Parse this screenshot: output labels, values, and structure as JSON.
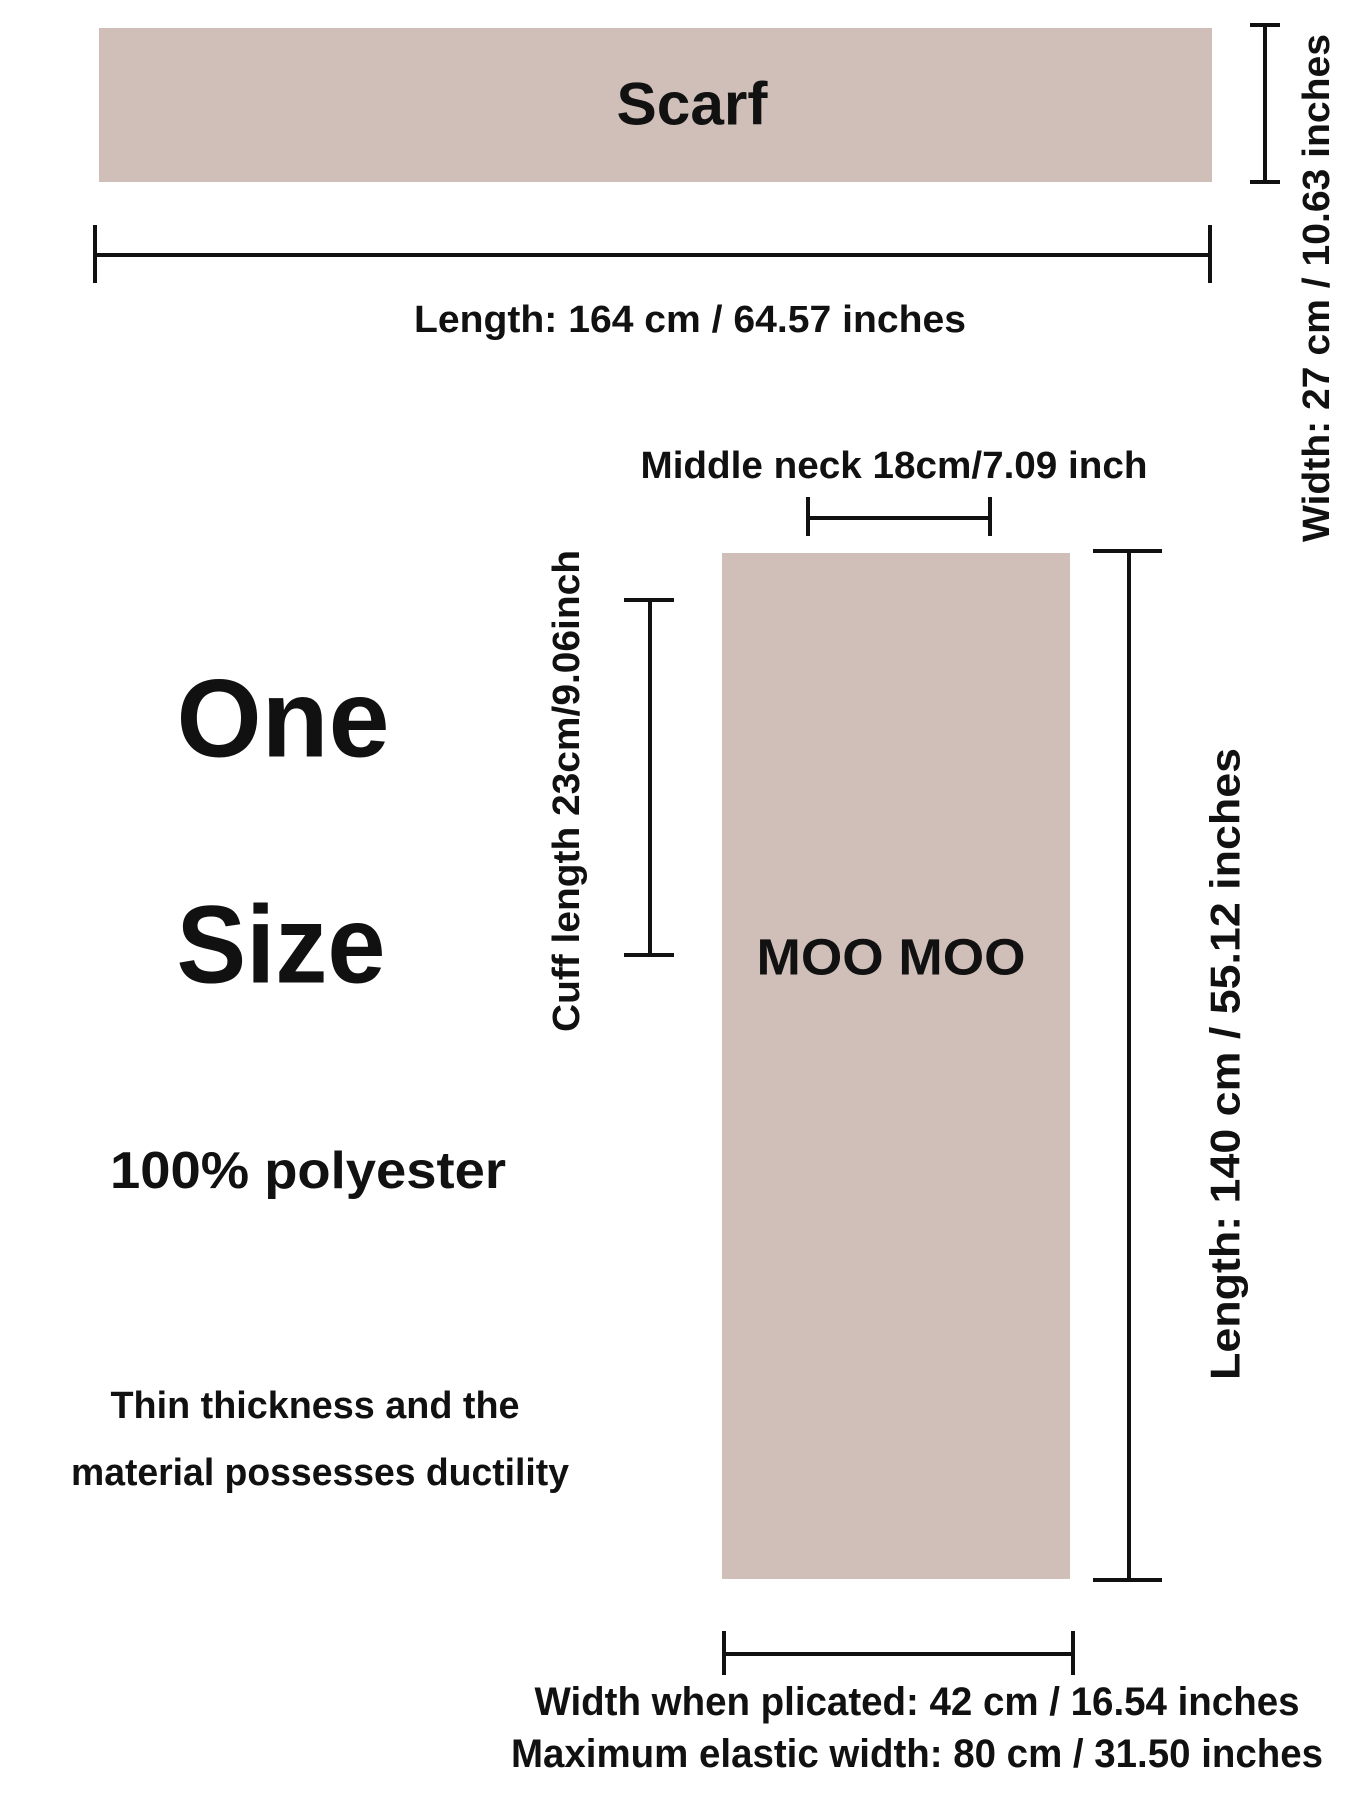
{
  "scarf": {
    "label": "Scarf",
    "length": "Length: 164 cm / 64.57 inches",
    "width": "Width: 27 cm / 10.63 inches"
  },
  "product": {
    "label": "MOO MOO",
    "middle_neck": "Middle neck 18cm/7.09 inch",
    "cuff_length": "Cuff length 23cm/9.06inch",
    "length": "Length: 140 cm / 55.12 inches",
    "width_plicated": "Width when plicated: 42 cm / 16.54 inches",
    "max_width": "Maximum elastic width: 80 cm / 31.50 inches"
  },
  "info": {
    "size_line1": "One",
    "size_line2": "Size",
    "material": "100% polyester",
    "note_line1": "Thin thickness and the",
    "note_line2": "material possesses ductility"
  }
}
